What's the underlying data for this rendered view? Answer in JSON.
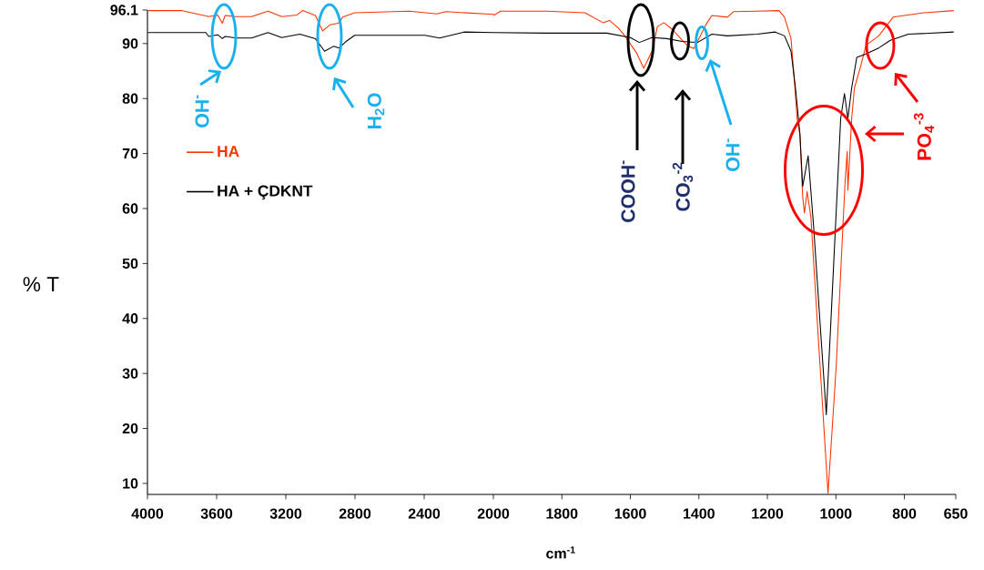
{
  "chart_data": [
    {
      "type": "line",
      "ylabel": "% T",
      "xlim": [
        4000,
        2000
      ],
      "ylim": [
        8,
        96.1
      ],
      "xticks": [
        4000,
        3600,
        3200,
        2800,
        2400
      ],
      "yticks": [
        10,
        20,
        30,
        40,
        50,
        60,
        70,
        80,
        90,
        96.1
      ],
      "legend": "top left",
      "series": [
        {
          "name": "HA",
          "color": "#ff3300",
          "x": [
            3998,
            3805,
            3673,
            3646,
            3594,
            3567,
            3551,
            3488,
            3398,
            3303,
            3224,
            3135,
            3103,
            3029,
            2987,
            2945,
            2897,
            2871,
            2802,
            2485,
            2327,
            2274,
            2000
          ],
          "values": [
            96.0,
            96.0,
            95.1,
            94.9,
            95.2,
            93.7,
            95.1,
            94.9,
            94.9,
            95.9,
            94.9,
            95.2,
            96.0,
            95.1,
            92.3,
            93.4,
            93.7,
            94.8,
            95.6,
            95.9,
            95.4,
            95.8,
            95.3
          ]
        },
        {
          "name": "HA + ÇDKNT",
          "color": "#000000",
          "x": [
            3998,
            3662,
            3646,
            3594,
            3567,
            3551,
            3488,
            3398,
            3303,
            3224,
            3119,
            3029,
            2976,
            2924,
            2892,
            2855,
            2802,
            2396,
            2311,
            2169,
            2000
          ],
          "values": [
            92.0,
            92.0,
            91.3,
            91.6,
            90.9,
            91.3,
            91.0,
            91.0,
            92.0,
            91.1,
            91.7,
            90.9,
            88.6,
            89.5,
            89.2,
            90.3,
            91.5,
            91.5,
            91.0,
            92.1,
            92.0
          ]
        }
      ],
      "annotations": [
        "OH$^{-}$",
        "H$_{2}$O"
      ]
    },
    {
      "type": "line",
      "xlabel": "cm$^{-1}$",
      "xlim": [
        2000,
        650
      ],
      "ylim": [
        8,
        96.1
      ],
      "xticks": [
        2000,
        1800,
        1600,
        1400,
        1200,
        1000,
        800,
        650
      ],
      "tick_labels": "x",
      "series": [
        {
          "color": "#ff3300",
          "x": [
            2000,
            1997,
            1979,
            1846,
            1733,
            1680,
            1661,
            1635,
            1616,
            1582,
            1561,
            1537,
            1521,
            1502,
            1476,
            1449,
            1431,
            1415,
            1396,
            1378,
            1362,
            1317,
            1299,
            1230,
            1166,
            1150,
            1131,
            1123,
            1113,
            1105,
            1097,
            1092,
            1084,
            1073,
            1052,
            1023,
            999,
            981,
            973,
            967,
            965,
            954,
            946,
            928,
            912,
            875,
            833,
            743,
            656
          ],
          "values": [
            95.3,
            95.2,
            95.9,
            95.9,
            95.6,
            93.8,
            94.2,
            92.8,
            91.4,
            88.3,
            85.5,
            88.6,
            93.1,
            93.8,
            92.5,
            90.6,
            89.5,
            89.1,
            91.4,
            93.6,
            95.1,
            94.8,
            95.8,
            95.9,
            96.0,
            94.8,
            90.9,
            84.7,
            76.3,
            73.5,
            62.2,
            59.2,
            63.1,
            58.4,
            37.1,
            8.2,
            31.4,
            54.9,
            65.0,
            70.4,
            63.3,
            76.3,
            81.9,
            85.8,
            89.7,
            91.4,
            94.8,
            95.6,
            96.0
          ]
        },
        {
          "color": "#000000",
          "x": [
            2000,
            1846,
            1669,
            1600,
            1574,
            1537,
            1494,
            1449,
            1404,
            1362,
            1317,
            1230,
            1177,
            1150,
            1131,
            1118,
            1105,
            1097,
            1081,
            1065,
            1044,
            1028,
            1012,
            999,
            986,
            975,
            965,
            954,
            939,
            912,
            875,
            841,
            788,
            656
          ],
          "values": [
            92.0,
            91.9,
            91.9,
            91.1,
            90.2,
            91.1,
            90.9,
            90.4,
            90.2,
            91.7,
            91.4,
            91.7,
            92.1,
            91.4,
            88.6,
            81.9,
            73.5,
            64.0,
            69.6,
            56.7,
            37.1,
            22.5,
            42.8,
            59.6,
            76.4,
            80.9,
            76.4,
            81.9,
            87.5,
            88.1,
            89.2,
            90.6,
            91.7,
            92.1
          ]
        }
      ],
      "annotations": [
        "COOH$^{-}$",
        "CO$_{3}$$^{-2}$",
        "OH$^{-}$",
        "PO$_{4}$$^{-3}$"
      ]
    }
  ]
}
